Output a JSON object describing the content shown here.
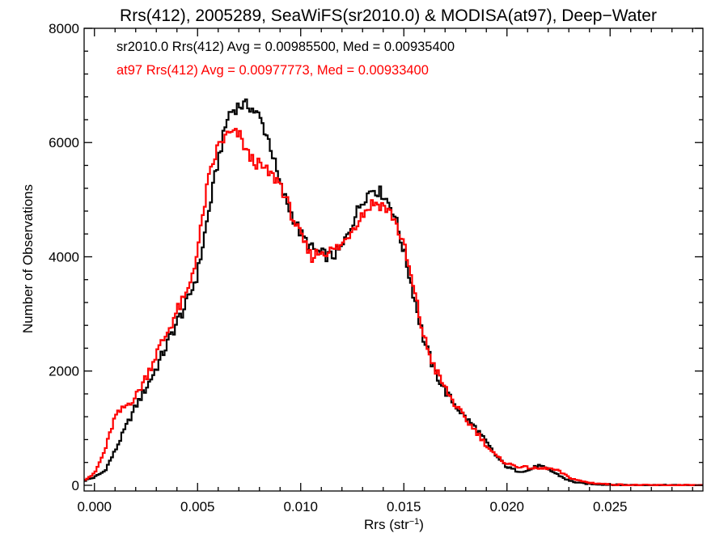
{
  "chart_data": {
    "type": "line",
    "title": "Rrs(412), 2005289, SeaWiFS(sr2010.0) & MODISA(at97), Deep−Water",
    "xlabel": "Rrs (str",
    "xlabel_sup": "−1",
    "xlabel_close": ")",
    "ylabel": "Number of Observations",
    "xlim": [
      -0.0005,
      0.0295
    ],
    "ylim": [
      -100,
      8000
    ],
    "x_ticks": [
      0.0,
      0.005,
      0.01,
      0.015,
      0.02,
      0.025
    ],
    "x_tick_labels": [
      "0.000",
      "0.005",
      "0.010",
      "0.015",
      "0.020",
      "0.025"
    ],
    "y_ticks": [
      0,
      2000,
      4000,
      6000,
      8000
    ],
    "y_tick_labels": [
      "0",
      "2000",
      "4000",
      "6000",
      "8000"
    ],
    "grid": false,
    "legend_position": "top-left",
    "bin_width": 0.0001,
    "series": [
      {
        "name": "sr2010.0",
        "color": "#000000",
        "stats_label": "sr2010.0 Rrs(412) Avg = 0.00985500, Med = 0.00935400",
        "points": [
          [
            -0.0005,
            80
          ],
          [
            0.0,
            140
          ],
          [
            0.0005,
            250
          ],
          [
            0.001,
            600
          ],
          [
            0.0015,
            1000
          ],
          [
            0.002,
            1380
          ],
          [
            0.0025,
            1700
          ],
          [
            0.003,
            2050
          ],
          [
            0.0035,
            2450
          ],
          [
            0.004,
            2850
          ],
          [
            0.0045,
            3200
          ],
          [
            0.005,
            3700
          ],
          [
            0.0055,
            4700
          ],
          [
            0.006,
            5700
          ],
          [
            0.0065,
            6500
          ],
          [
            0.007,
            6650
          ],
          [
            0.0075,
            6650
          ],
          [
            0.008,
            6450
          ],
          [
            0.0085,
            6000
          ],
          [
            0.009,
            5250
          ],
          [
            0.0095,
            4800
          ],
          [
            0.01,
            4400
          ],
          [
            0.0105,
            4150
          ],
          [
            0.011,
            4050
          ],
          [
            0.0115,
            4000
          ],
          [
            0.012,
            4150
          ],
          [
            0.0125,
            4600
          ],
          [
            0.013,
            5000
          ],
          [
            0.0135,
            5200
          ],
          [
            0.014,
            5100
          ],
          [
            0.0145,
            4800
          ],
          [
            0.015,
            4100
          ],
          [
            0.0155,
            3300
          ],
          [
            0.016,
            2500
          ],
          [
            0.0165,
            2000
          ],
          [
            0.017,
            1650
          ],
          [
            0.0175,
            1400
          ],
          [
            0.018,
            1180
          ],
          [
            0.0185,
            1000
          ],
          [
            0.019,
            750
          ],
          [
            0.0195,
            500
          ],
          [
            0.02,
            320
          ],
          [
            0.0205,
            250
          ],
          [
            0.021,
            250
          ],
          [
            0.0215,
            350
          ],
          [
            0.022,
            280
          ],
          [
            0.0225,
            180
          ],
          [
            0.023,
            80
          ],
          [
            0.0235,
            40
          ],
          [
            0.024,
            25
          ],
          [
            0.025,
            10
          ],
          [
            0.026,
            4
          ],
          [
            0.027,
            2
          ],
          [
            0.0295,
            0
          ]
        ]
      },
      {
        "name": "at97",
        "color": "#ff0000",
        "stats_label": "at97 Rrs(412) Avg = 0.00977773, Med = 0.00933400",
        "points": [
          [
            -0.0005,
            100
          ],
          [
            0.0,
            200
          ],
          [
            0.0005,
            600
          ],
          [
            0.001,
            1200
          ],
          [
            0.0015,
            1380
          ],
          [
            0.002,
            1550
          ],
          [
            0.0025,
            1900
          ],
          [
            0.003,
            2300
          ],
          [
            0.0035,
            2650
          ],
          [
            0.004,
            3050
          ],
          [
            0.0045,
            3350
          ],
          [
            0.005,
            4100
          ],
          [
            0.0055,
            5300
          ],
          [
            0.006,
            5950
          ],
          [
            0.0065,
            6150
          ],
          [
            0.007,
            6150
          ],
          [
            0.0075,
            5750
          ],
          [
            0.008,
            5600
          ],
          [
            0.0085,
            5450
          ],
          [
            0.009,
            5300
          ],
          [
            0.0095,
            4800
          ],
          [
            0.01,
            4350
          ],
          [
            0.0105,
            4000
          ],
          [
            0.011,
            4100
          ],
          [
            0.0115,
            4100
          ],
          [
            0.012,
            4200
          ],
          [
            0.0125,
            4500
          ],
          [
            0.013,
            4750
          ],
          [
            0.0135,
            4950
          ],
          [
            0.014,
            4900
          ],
          [
            0.0145,
            4700
          ],
          [
            0.015,
            4200
          ],
          [
            0.0155,
            3400
          ],
          [
            0.016,
            2550
          ],
          [
            0.0165,
            2050
          ],
          [
            0.017,
            1700
          ],
          [
            0.0175,
            1400
          ],
          [
            0.018,
            1150
          ],
          [
            0.0185,
            950
          ],
          [
            0.019,
            700
          ],
          [
            0.0195,
            500
          ],
          [
            0.02,
            380
          ],
          [
            0.0205,
            330
          ],
          [
            0.021,
            310
          ],
          [
            0.0215,
            290
          ],
          [
            0.022,
            300
          ],
          [
            0.0225,
            250
          ],
          [
            0.023,
            140
          ],
          [
            0.0235,
            80
          ],
          [
            0.024,
            45
          ],
          [
            0.025,
            15
          ],
          [
            0.026,
            5
          ],
          [
            0.027,
            2
          ],
          [
            0.0295,
            0
          ]
        ]
      }
    ]
  }
}
